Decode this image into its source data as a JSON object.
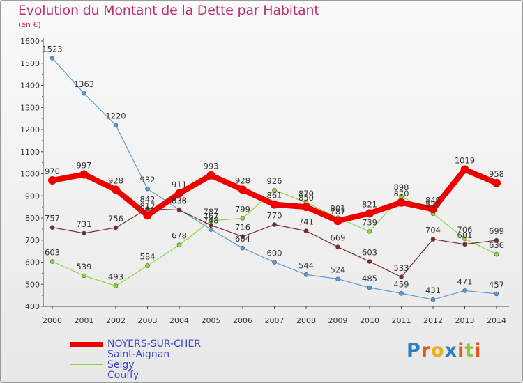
{
  "title": "Evolution du Montant de la Dette par Habitant",
  "subtitle": "(en €)",
  "logo_text": "Proxiti",
  "chart_data": {
    "type": "line",
    "title": "Evolution du Montant de la Dette par Habitant",
    "ylabel": "(en €)",
    "xlabel": "",
    "x": [
      "2000",
      "2001",
      "2002",
      "2003",
      "2004",
      "2005",
      "2006",
      "2007",
      "2008",
      "2009",
      "2010",
      "2011",
      "2012",
      "2013",
      "2014"
    ],
    "ylim": [
      400,
      1600
    ],
    "yticks": [
      400,
      500,
      600,
      700,
      800,
      900,
      1000,
      1100,
      1200,
      1300,
      1400,
      1500,
      1600
    ],
    "grid": false,
    "legend_position": "bottom-left",
    "series": [
      {
        "name": "NOYERS-SUR-CHER",
        "color": "#ee0000",
        "values": [
          970,
          997,
          928,
          812,
          911,
          993,
          928,
          861,
          850,
          787,
          821,
          870,
          840,
          1019,
          958
        ]
      },
      {
        "name": "Saint-Aignan",
        "color": "#5b9bd5",
        "values": [
          1523,
          1363,
          1220,
          932,
          838,
          748,
          664,
          600,
          544,
          524,
          485,
          459,
          431,
          471,
          457
        ]
      },
      {
        "name": "Seigy",
        "color": "#8cd63c",
        "values": [
          603,
          539,
          493,
          584,
          678,
          787,
          799,
          926,
          870,
          801,
          739,
          898,
          820,
          706,
          636
        ]
      },
      {
        "name": "Couffy",
        "color": "#7a2a2a",
        "values": [
          757,
          731,
          756,
          842,
          836,
          767,
          716,
          770,
          741,
          669,
          603,
          533,
          704,
          681,
          699
        ]
      }
    ]
  }
}
